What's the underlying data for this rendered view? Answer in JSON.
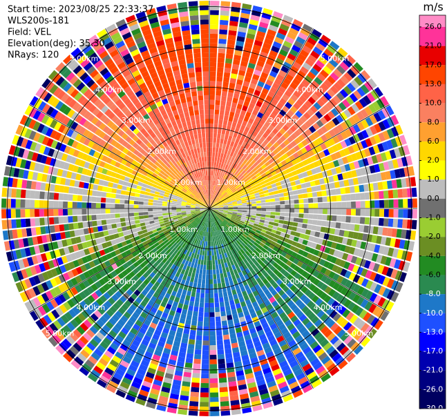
{
  "chart_data": {
    "type": "ppi",
    "header": [
      "Start time: 2023/08/25 22:33:37",
      "WLS200s-181",
      "Field: VEL",
      "Elevation(deg): 35.30",
      "NRays: 120"
    ],
    "rings": [
      {
        "value": 1,
        "label": "1.00km"
      },
      {
        "value": 2,
        "label": "2.00km"
      },
      {
        "value": 3,
        "label": "3.00km"
      },
      {
        "value": 4,
        "label": "4.00km"
      },
      {
        "value": 5,
        "label": "5.00km"
      }
    ],
    "colorbar": {
      "label": "m/s",
      "ticks": [
        {
          "value": 26,
          "label": "26.0"
        },
        {
          "value": 21,
          "label": "21.0"
        },
        {
          "value": 17,
          "label": "17.0"
        },
        {
          "value": 13,
          "label": "13.0"
        },
        {
          "value": 10,
          "label": "10.0"
        },
        {
          "value": 8,
          "label": "8.0"
        },
        {
          "value": 6,
          "label": "6.0"
        },
        {
          "value": 2,
          "label": "2.0"
        },
        {
          "value": 1,
          "label": "1.0"
        },
        {
          "value": 0,
          "label": "0.0"
        },
        {
          "value": -1,
          "label": "-1.0"
        },
        {
          "value": -2,
          "label": "-2.0"
        },
        {
          "value": -4,
          "label": "-4.0"
        },
        {
          "value": -6,
          "label": "-6.0"
        },
        {
          "value": -8,
          "label": "-8.0"
        },
        {
          "value": -10,
          "label": "-10.0"
        },
        {
          "value": -13,
          "label": "-13.0"
        },
        {
          "value": -17,
          "label": "-17.0"
        },
        {
          "value": -21,
          "label": "-21.0"
        },
        {
          "value": -26,
          "label": "-26.0"
        },
        {
          "value": -30,
          "label": "-30.0"
        }
      ],
      "colors": [
        "#ff8cc6",
        "#ff3399",
        "#e80000",
        "#ff4500",
        "#ff6347",
        "#fa8060",
        "#ffa030",
        "#ffd700",
        "#ffff00",
        "#bdbdbd",
        "#707070",
        "#9acd32",
        "#6b8e23",
        "#228b22",
        "#2a8a50",
        "#1e78c8",
        "#1e50ff",
        "#0000ff",
        "#0000b0",
        "#000080",
        "#000060"
      ]
    }
  }
}
